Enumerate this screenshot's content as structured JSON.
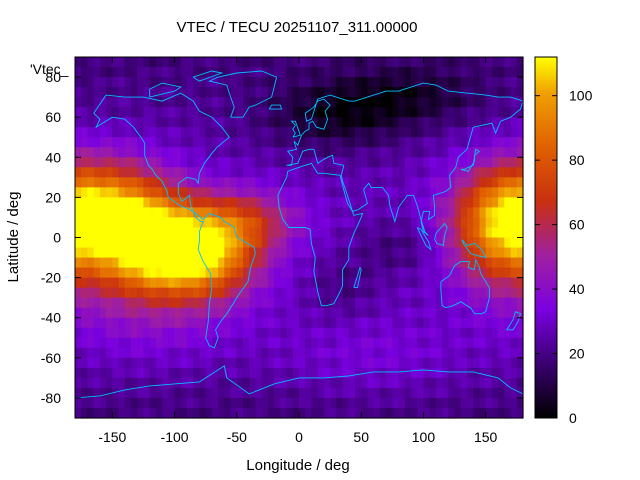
{
  "chart_data": {
    "type": "heatmap",
    "title": "VTEC / TECU 20251107_311.00000",
    "xlabel": "Longitude / deg",
    "ylabel": "Latitude / deg",
    "legend_label": "'Vtec_",
    "xlim": [
      -180,
      180
    ],
    "ylim": [
      -90,
      90
    ],
    "x_ticks": [
      -150,
      -100,
      -50,
      0,
      50,
      100,
      150
    ],
    "y_ticks": [
      -80,
      -60,
      -40,
      -20,
      0,
      20,
      40,
      60,
      80
    ],
    "colorbar": {
      "min": 0,
      "max": 112,
      "ticks": [
        0,
        20,
        40,
        60,
        80,
        100
      ],
      "palette": "black-purple-red-orange-yellow"
    },
    "grid": false,
    "z_description": "Vertical total electron content (TECU) on a latitude-longitude grid",
    "features": [
      {
        "lon": -155,
        "lat": 12,
        "sx": 38,
        "sy": 18,
        "amp": 75
      },
      {
        "lon": -110,
        "lat": -5,
        "sx": 32,
        "sy": 15,
        "amp": 70
      },
      {
        "lon": -70,
        "lat": -10,
        "sx": 28,
        "sy": 14,
        "amp": 45
      },
      {
        "lon": -45,
        "lat": 8,
        "sx": 30,
        "sy": 11,
        "amp": 35
      },
      {
        "lon": 160,
        "lat": 5,
        "sx": 28,
        "sy": 20,
        "amp": 50
      },
      {
        "lon": -120,
        "lat": -30,
        "sx": 50,
        "sy": 22,
        "amp": 18
      },
      {
        "lon": 60,
        "lat": -60,
        "sx": 60,
        "sy": 15,
        "amp": 10
      },
      {
        "lon": 30,
        "lat": 60,
        "sx": 40,
        "sy": 12,
        "amp": -18
      },
      {
        "lon": 90,
        "lat": 70,
        "sx": 40,
        "sy": 10,
        "amp": -14
      },
      {
        "lon": 80,
        "lat": -5,
        "sx": 25,
        "sy": 10,
        "amp": -10
      },
      {
        "lon": 35,
        "lat": -25,
        "sx": 20,
        "sy": 12,
        "amp": -8
      }
    ]
  },
  "coastline_color": "#00bfff",
  "coastlines": [
    [
      [
        -165,
        62
      ],
      [
        -155,
        71
      ],
      [
        -140,
        70
      ],
      [
        -125,
        70
      ],
      [
        -110,
        68
      ],
      [
        -95,
        72
      ],
      [
        -85,
        68
      ],
      [
        -80,
        63
      ],
      [
        -70,
        60
      ],
      [
        -62,
        55
      ],
      [
        -56,
        50
      ],
      [
        -66,
        45
      ],
      [
        -70,
        42
      ],
      [
        -76,
        37
      ],
      [
        -80,
        32
      ],
      [
        -81,
        27
      ],
      [
        -83,
        29
      ],
      [
        -90,
        30
      ],
      [
        -97,
        27
      ],
      [
        -97,
        22
      ],
      [
        -94,
        18
      ],
      [
        -88,
        21
      ],
      [
        -87,
        16
      ],
      [
        -83,
        10
      ],
      [
        -79,
        8
      ],
      [
        -77,
        8
      ],
      [
        -80,
        3
      ],
      [
        -80,
        -2
      ],
      [
        -81,
        -6
      ],
      [
        -77,
        -12
      ],
      [
        -71,
        -18
      ],
      [
        -70,
        -25
      ],
      [
        -72,
        -33
      ],
      [
        -73,
        -42
      ],
      [
        -75,
        -50
      ],
      [
        -72,
        -54
      ],
      [
        -68,
        -55
      ],
      [
        -65,
        -50
      ],
      [
        -67,
        -46
      ],
      [
        -63,
        -42
      ],
      [
        -58,
        -38
      ],
      [
        -55,
        -35
      ],
      [
        -48,
        -28
      ],
      [
        -41,
        -22
      ],
      [
        -39,
        -15
      ],
      [
        -35,
        -8
      ],
      [
        -36,
        -5
      ],
      [
        -44,
        -2
      ],
      [
        -50,
        0
      ],
      [
        -52,
        5
      ],
      [
        -60,
        8
      ],
      [
        -63,
        10
      ],
      [
        -72,
        12
      ],
      [
        -77,
        9
      ],
      [
        -85,
        13
      ],
      [
        -92,
        15
      ],
      [
        -96,
        16
      ],
      [
        -105,
        20
      ],
      [
        -106,
        23
      ],
      [
        -110,
        28
      ],
      [
        -115,
        31
      ],
      [
        -118,
        34
      ],
      [
        -121,
        36
      ],
      [
        -124,
        41
      ],
      [
        -124,
        47
      ],
      [
        -127,
        50
      ],
      [
        -133,
        55
      ],
      [
        -140,
        59
      ],
      [
        -150,
        60
      ],
      [
        -158,
        57
      ],
      [
        -163,
        55
      ],
      [
        -160,
        59
      ],
      [
        -165,
        62
      ]
    ],
    [
      [
        -55,
        60
      ],
      [
        -45,
        60
      ],
      [
        -40,
        65
      ],
      [
        -35,
        66
      ],
      [
        -22,
        70
      ],
      [
        -20,
        75
      ],
      [
        -18,
        80
      ],
      [
        -30,
        83
      ],
      [
        -50,
        82
      ],
      [
        -65,
        80
      ],
      [
        -72,
        78
      ],
      [
        -58,
        76
      ],
      [
        -55,
        70
      ],
      [
        -52,
        65
      ],
      [
        -55,
        60
      ]
    ],
    [
      [
        -10,
        36
      ],
      [
        -6,
        36
      ],
      [
        -5,
        40
      ],
      [
        -9,
        43
      ],
      [
        -2,
        44
      ],
      [
        -4,
        48
      ],
      [
        -1,
        46
      ],
      [
        2,
        51
      ],
      [
        5,
        53
      ],
      [
        8,
        54
      ],
      [
        8,
        57
      ],
      [
        11,
        58
      ],
      [
        14,
        55
      ],
      [
        20,
        54
      ],
      [
        23,
        59
      ],
      [
        21,
        63
      ],
      [
        25,
        66
      ],
      [
        20,
        69
      ],
      [
        15,
        68
      ],
      [
        12,
        65
      ],
      [
        5,
        62
      ],
      [
        6,
        58
      ],
      [
        10,
        59
      ],
      [
        15,
        69
      ],
      [
        25,
        71
      ],
      [
        40,
        68
      ],
      [
        45,
        68
      ],
      [
        55,
        70
      ],
      [
        70,
        73
      ],
      [
        80,
        73
      ],
      [
        100,
        77
      ],
      [
        110,
        76
      ],
      [
        120,
        73
      ],
      [
        135,
        72
      ],
      [
        150,
        71
      ],
      [
        160,
        70
      ],
      [
        170,
        70
      ],
      [
        180,
        68
      ],
      [
        178,
        64
      ],
      [
        170,
        60
      ],
      [
        162,
        58
      ],
      [
        158,
        52
      ],
      [
        155,
        57
      ],
      [
        140,
        55
      ],
      [
        135,
        44
      ],
      [
        128,
        40
      ],
      [
        126,
        35
      ],
      [
        121,
        31
      ],
      [
        122,
        25
      ],
      [
        118,
        23
      ],
      [
        108,
        21
      ],
      [
        109,
        15
      ],
      [
        109,
        11
      ],
      [
        104,
        9
      ],
      [
        105,
        13
      ],
      [
        100,
        13
      ],
      [
        98,
        8
      ],
      [
        100,
        3
      ],
      [
        104,
        1
      ],
      [
        101,
        3
      ],
      [
        98,
        9
      ],
      [
        95,
        16
      ],
      [
        92,
        21
      ],
      [
        87,
        21
      ],
      [
        80,
        15
      ],
      [
        77,
        8
      ],
      [
        73,
        16
      ],
      [
        72,
        21
      ],
      [
        67,
        25
      ],
      [
        58,
        25
      ],
      [
        56,
        27
      ],
      [
        52,
        24
      ],
      [
        55,
        17
      ],
      [
        48,
        14
      ],
      [
        43,
        13
      ],
      [
        39,
        21
      ],
      [
        35,
        28
      ],
      [
        34,
        31
      ],
      [
        36,
        36
      ],
      [
        28,
        37
      ],
      [
        27,
        41
      ],
      [
        23,
        40
      ],
      [
        20,
        39
      ],
      [
        15,
        37
      ],
      [
        12,
        44
      ],
      [
        8,
        44
      ],
      [
        3,
        43
      ],
      [
        -1,
        37
      ],
      [
        -10,
        36
      ]
    ],
    [
      [
        -17,
        21
      ],
      [
        -16,
        15
      ],
      [
        -13,
        9
      ],
      [
        -8,
        5
      ],
      [
        -2,
        5
      ],
      [
        5,
        5
      ],
      [
        9,
        4
      ],
      [
        10,
        -3
      ],
      [
        13,
        -10
      ],
      [
        12,
        -17
      ],
      [
        15,
        -27
      ],
      [
        18,
        -34
      ],
      [
        22,
        -34
      ],
      [
        28,
        -33
      ],
      [
        33,
        -27
      ],
      [
        35,
        -24
      ],
      [
        35,
        -16
      ],
      [
        40,
        -11
      ],
      [
        40,
        -5
      ],
      [
        44,
        2
      ],
      [
        50,
        10
      ],
      [
        51,
        12
      ],
      [
        44,
        11
      ],
      [
        43,
        13
      ],
      [
        39,
        17
      ],
      [
        35,
        26
      ],
      [
        33,
        31
      ],
      [
        20,
        32
      ],
      [
        15,
        32
      ],
      [
        10,
        37
      ],
      [
        0,
        35
      ],
      [
        -9,
        33
      ],
      [
        -10,
        30
      ],
      [
        -17,
        21
      ]
    ],
    [
      [
        44,
        -25
      ],
      [
        49,
        -15
      ],
      [
        50,
        -16
      ],
      [
        47,
        -25
      ],
      [
        44,
        -25
      ]
    ],
    [
      [
        114,
        -22
      ],
      [
        114,
        -26
      ],
      [
        115,
        -34
      ],
      [
        118,
        -35
      ],
      [
        124,
        -34
      ],
      [
        130,
        -32
      ],
      [
        135,
        -34
      ],
      [
        138,
        -35
      ],
      [
        141,
        -38
      ],
      [
        147,
        -38
      ],
      [
        150,
        -37
      ],
      [
        153,
        -30
      ],
      [
        153,
        -25
      ],
      [
        146,
        -18
      ],
      [
        145,
        -15
      ],
      [
        142,
        -11
      ],
      [
        141,
        -16
      ],
      [
        136,
        -15
      ],
      [
        137,
        -12
      ],
      [
        130,
        -12
      ],
      [
        125,
        -14
      ],
      [
        121,
        -19
      ],
      [
        114,
        -22
      ]
    ],
    [
      [
        -180,
        -80
      ],
      [
        -160,
        -79
      ],
      [
        -140,
        -76
      ],
      [
        -120,
        -74
      ],
      [
        -100,
        -73
      ],
      [
        -80,
        -72
      ],
      [
        -65,
        -66
      ],
      [
        -60,
        -64
      ],
      [
        -58,
        -70
      ],
      [
        -40,
        -78
      ],
      [
        -20,
        -73
      ],
      [
        0,
        -70
      ],
      [
        20,
        -70
      ],
      [
        40,
        -69
      ],
      [
        60,
        -67
      ],
      [
        80,
        -67
      ],
      [
        100,
        -66
      ],
      [
        120,
        -67
      ],
      [
        140,
        -67
      ],
      [
        160,
        -70
      ],
      [
        170,
        -75
      ],
      [
        180,
        -78
      ]
    ],
    [
      [
        130,
        34
      ],
      [
        133,
        34
      ],
      [
        136,
        35
      ],
      [
        140,
        36
      ],
      [
        141,
        40
      ],
      [
        142,
        44
      ],
      [
        145,
        43
      ],
      [
        141,
        41
      ],
      [
        141,
        38
      ],
      [
        136,
        33
      ],
      [
        130,
        34
      ]
    ],
    [
      [
        -5,
        50
      ],
      [
        -3,
        52
      ],
      [
        -5,
        54
      ],
      [
        -3,
        56
      ],
      [
        -6,
        58
      ],
      [
        -3,
        58
      ],
      [
        0,
        53
      ],
      [
        1,
        51
      ],
      [
        -5,
        50
      ]
    ],
    [
      [
        95,
        5
      ],
      [
        98,
        4
      ],
      [
        104,
        -2
      ],
      [
        106,
        -6
      ],
      [
        102,
        -4
      ],
      [
        98,
        1
      ],
      [
        95,
        5
      ]
    ],
    [
      [
        109,
        -1
      ],
      [
        110,
        2
      ],
      [
        117,
        7
      ],
      [
        119,
        5
      ],
      [
        117,
        1
      ],
      [
        116,
        -4
      ],
      [
        111,
        -3
      ],
      [
        109,
        -1
      ]
    ],
    [
      [
        131,
        -1
      ],
      [
        135,
        -4
      ],
      [
        141,
        -3
      ],
      [
        147,
        -6
      ],
      [
        150,
        -10
      ],
      [
        143,
        -9
      ],
      [
        138,
        -8
      ],
      [
        132,
        -3
      ],
      [
        131,
        -1
      ]
    ],
    [
      [
        172,
        -41
      ],
      [
        174,
        -37
      ],
      [
        178,
        -38
      ],
      [
        176,
        -42
      ],
      [
        172,
        -46
      ],
      [
        167,
        -46
      ],
      [
        172,
        -41
      ]
    ],
    [
      [
        -24,
        64
      ],
      [
        -14,
        64
      ],
      [
        -15,
        66
      ],
      [
        -22,
        66
      ],
      [
        -24,
        64
      ]
    ],
    [
      [
        -85,
        80
      ],
      [
        -70,
        83
      ],
      [
        -62,
        82
      ],
      [
        -80,
        78
      ],
      [
        -85,
        80
      ]
    ],
    [
      [
        -120,
        70
      ],
      [
        -100,
        73
      ],
      [
        -95,
        75
      ],
      [
        -110,
        77
      ],
      [
        -120,
        74
      ],
      [
        -120,
        70
      ]
    ]
  ]
}
